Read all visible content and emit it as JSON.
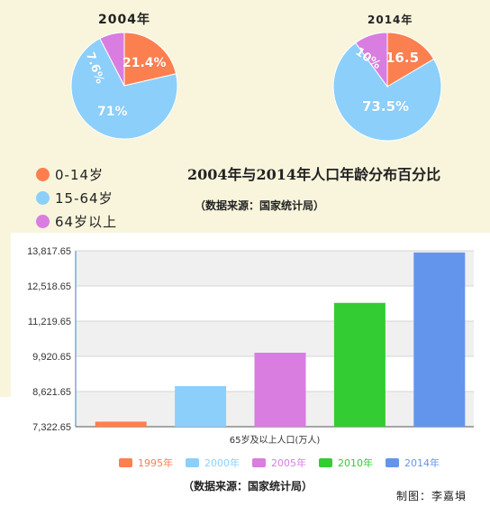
{
  "pies": [
    {
      "year": "2004年",
      "segments": [
        {
          "label": "21.4%",
          "value": 21.4,
          "color": "#fc7f4f"
        },
        {
          "label": "71%",
          "value": 71.0,
          "color": "#8ccffb"
        },
        {
          "label": "7.6%",
          "value": 7.6,
          "color": "#d97de0"
        }
      ]
    },
    {
      "year": "2014年",
      "segments": [
        {
          "label": "16.5",
          "value": 16.5,
          "color": "#fc7f4f"
        },
        {
          "label": "73.5%",
          "value": 73.5,
          "color": "#8ccffb"
        },
        {
          "label": "10%",
          "value": 10.0,
          "color": "#d97de0"
        }
      ]
    }
  ],
  "pie_legend": [
    {
      "label": "0-14岁",
      "color": "#fc7f4f"
    },
    {
      "label": "15-64岁",
      "color": "#8ccffb"
    },
    {
      "label": "64岁以上",
      "color": "#d97de0"
    }
  ],
  "title": "2004年与2014年人口年龄分布百分比",
  "source_top": "（数据来源：国家统计局）",
  "chart_data": {
    "type": "bar",
    "xlabel": "65岁及以上人口(万人)",
    "ylim": [
      7322.65,
      13817.65
    ],
    "y_ticks": [
      "7,322.65",
      "8,621.65",
      "9,920.65",
      "11,219.65",
      "12,518.65",
      "13,817.65"
    ],
    "y_tick_values": [
      7322.65,
      8621.65,
      9920.65,
      11219.65,
      12518.65,
      13817.65
    ],
    "series": [
      {
        "name": "1995年",
        "value": 7510,
        "color": "#fc7f4f"
      },
      {
        "name": "2000年",
        "value": 8821,
        "color": "#8ccffb"
      },
      {
        "name": "2005年",
        "value": 10055,
        "color": "#d97de0"
      },
      {
        "name": "2010年",
        "value": 11894,
        "color": "#33cc33"
      },
      {
        "name": "2014年",
        "value": 13755,
        "color": "#6495ed"
      }
    ]
  },
  "source_bottom": "（数据来源：国家统计局）",
  "credit": "制图：李嘉塤"
}
